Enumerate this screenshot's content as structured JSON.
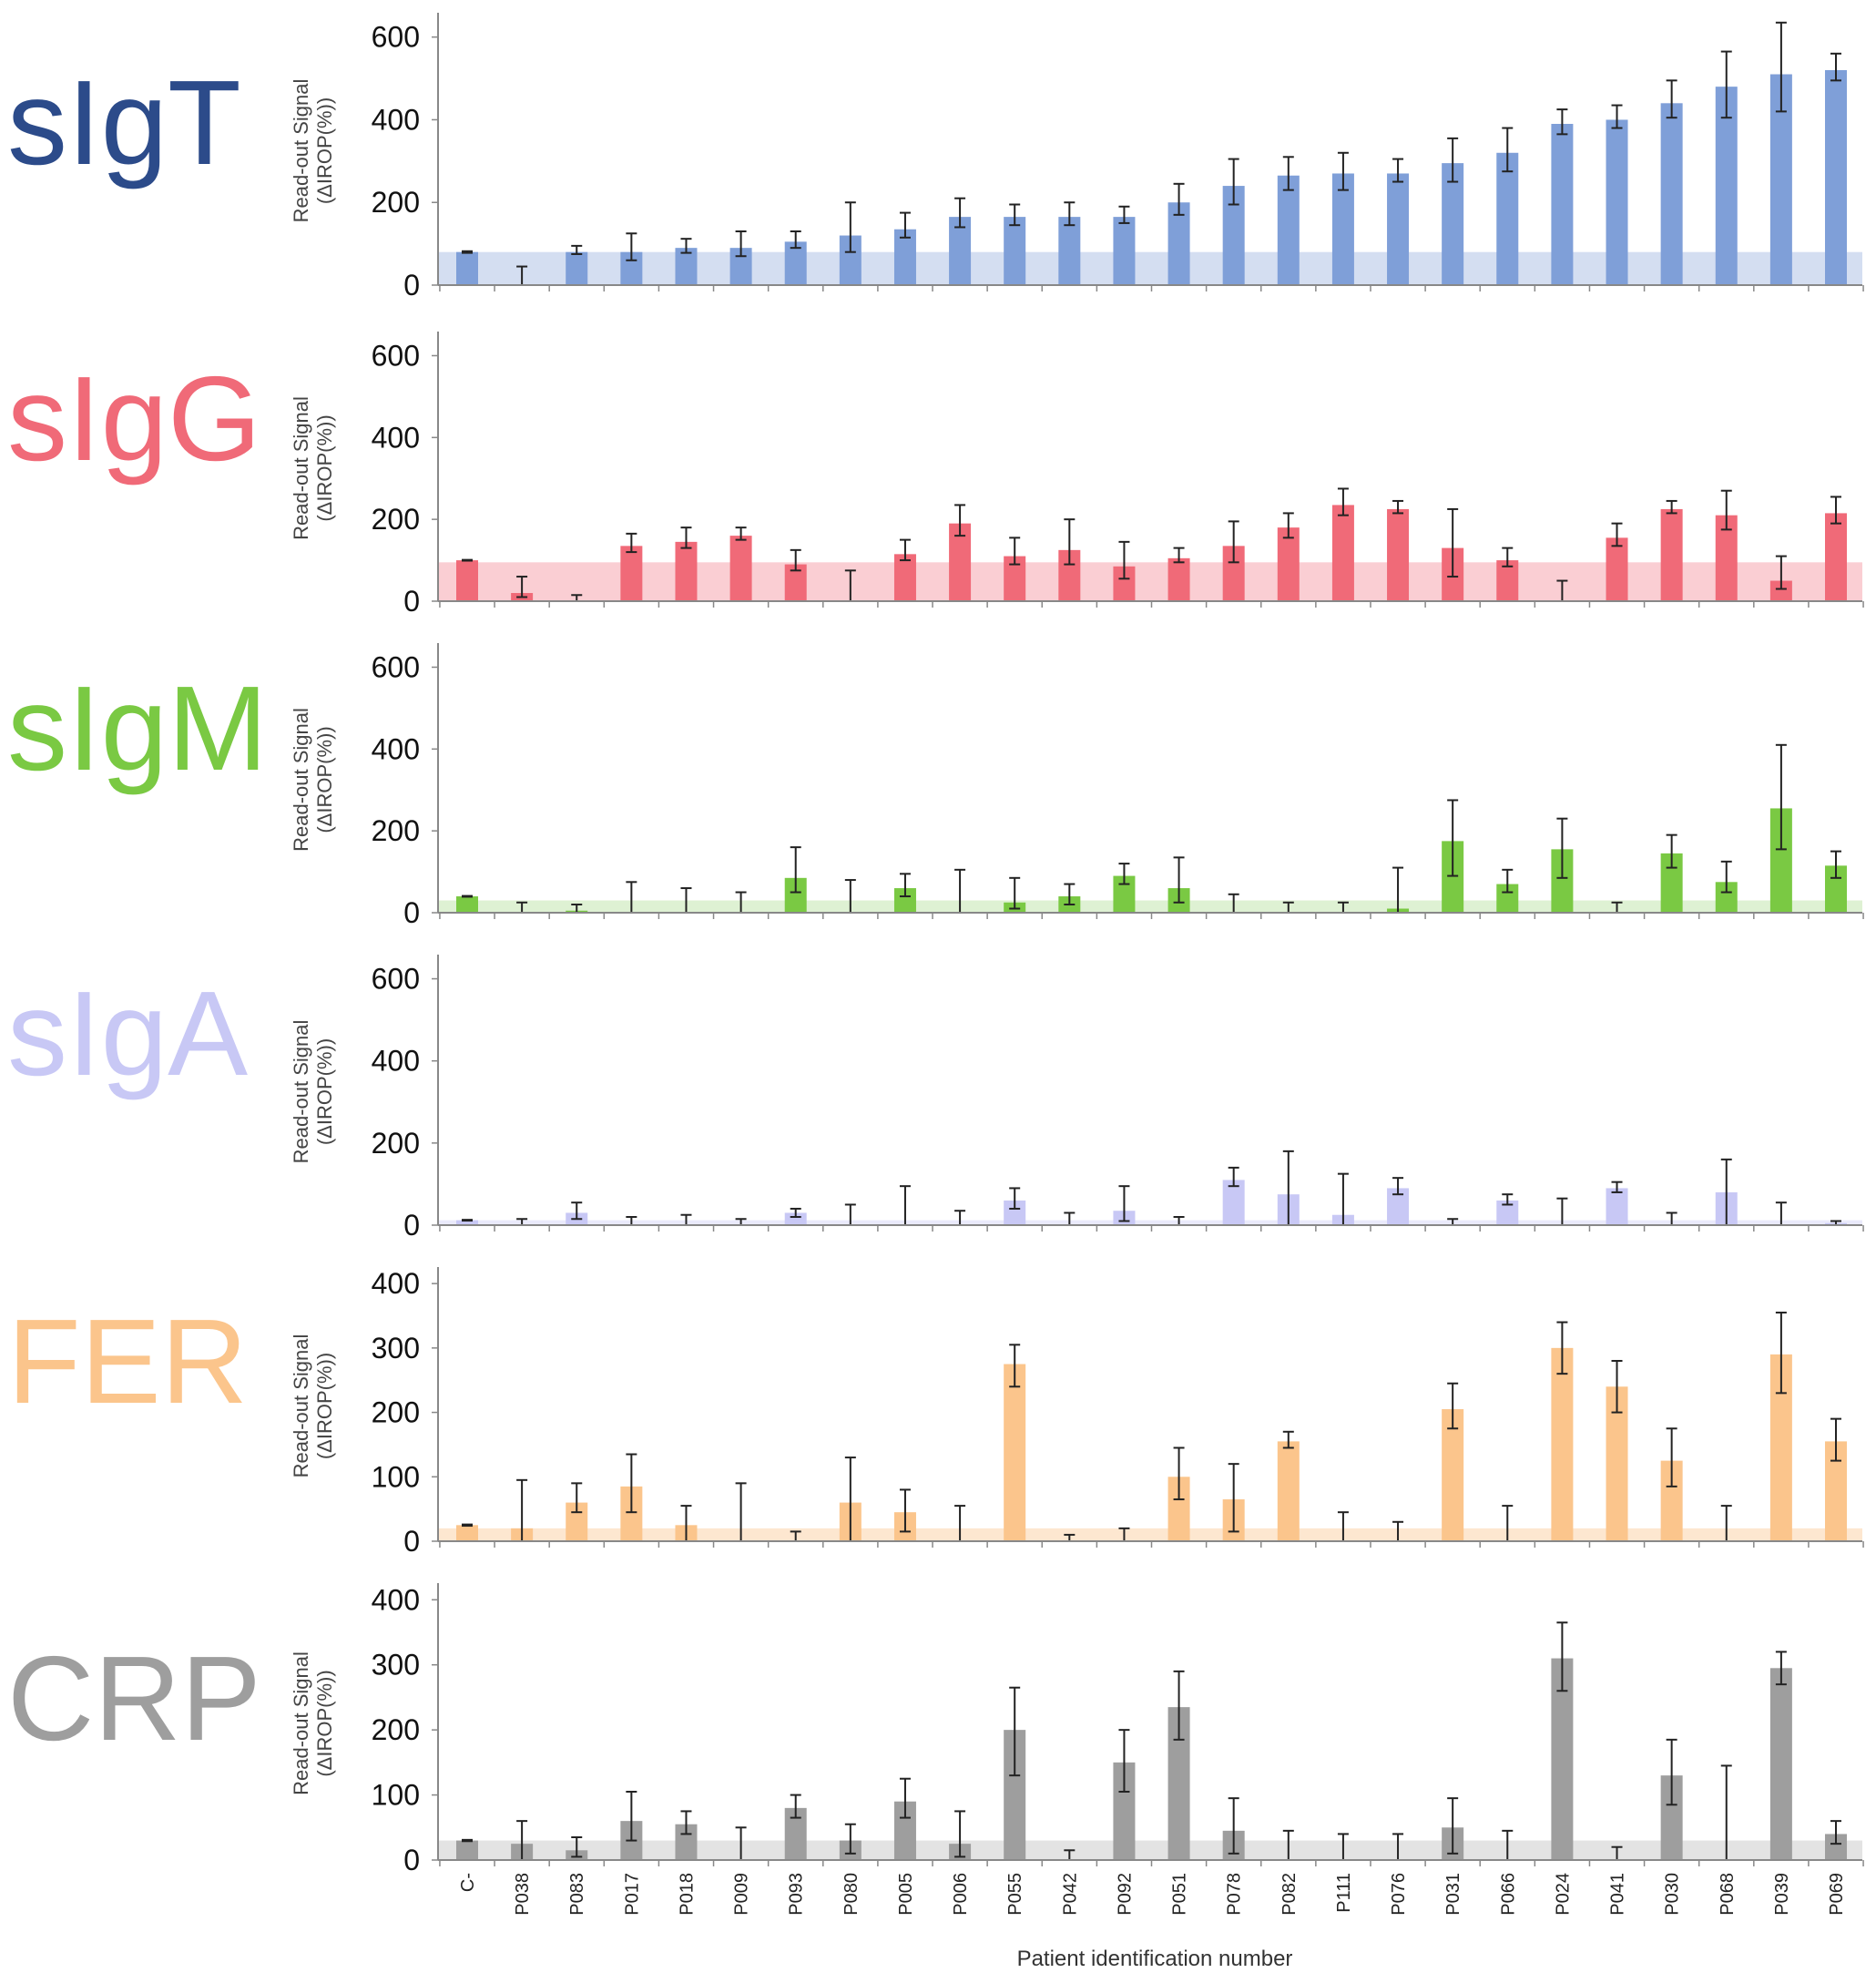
{
  "xlabel": "Patient identification number",
  "categories": [
    "C-",
    "P038",
    "P083",
    "P017",
    "P018",
    "P009",
    "P093",
    "P080",
    "P005",
    "P006",
    "P055",
    "P042",
    "P092",
    "P051",
    "P078",
    "P082",
    "P111",
    "P076",
    "P031",
    "P066",
    "P024",
    "P041",
    "P030",
    "P068",
    "P039",
    "P069"
  ],
  "chart_data": [
    {
      "type": "bar",
      "title": "sIgT",
      "ylabel": "Read-out Signal\n(ΔIROP(%))",
      "ylim": [
        0,
        650
      ],
      "yticks": [
        0,
        200,
        400,
        600
      ],
      "color": "#7f9fd8",
      "label_color": "#2c4b8a",
      "threshold": 80,
      "threshold_color": "#cdd8ef",
      "values": [
        80,
        0,
        80,
        80,
        90,
        90,
        105,
        120,
        135,
        165,
        165,
        165,
        165,
        200,
        240,
        265,
        270,
        270,
        295,
        320,
        390,
        400,
        440,
        480,
        510,
        520
      ],
      "errors_up": [
        2,
        45,
        15,
        45,
        22,
        40,
        25,
        80,
        40,
        45,
        30,
        35,
        25,
        45,
        65,
        45,
        50,
        35,
        60,
        60,
        35,
        35,
        55,
        85,
        125,
        40
      ],
      "errors_down": [
        2,
        0,
        5,
        20,
        12,
        20,
        15,
        40,
        20,
        25,
        20,
        20,
        15,
        30,
        45,
        35,
        40,
        20,
        45,
        45,
        25,
        20,
        35,
        75,
        90,
        25
      ]
    },
    {
      "type": "bar",
      "title": "sIgG",
      "ylabel": "Read-out Signal\n(ΔIROP(%))",
      "ylim": [
        0,
        650
      ],
      "yticks": [
        0,
        200,
        400,
        600
      ],
      "color": "#f06a78",
      "label_color": "#f06a78",
      "threshold": 95,
      "threshold_color": "#f9c6cb",
      "values": [
        100,
        20,
        0,
        135,
        145,
        160,
        90,
        0,
        115,
        190,
        110,
        125,
        85,
        105,
        135,
        180,
        235,
        225,
        130,
        100,
        0,
        155,
        225,
        210,
        50,
        215
      ],
      "errors_up": [
        1,
        40,
        15,
        30,
        35,
        20,
        35,
        75,
        35,
        45,
        45,
        75,
        60,
        25,
        60,
        35,
        40,
        20,
        95,
        30,
        50,
        35,
        20,
        60,
        60,
        40
      ],
      "errors_down": [
        1,
        10,
        0,
        15,
        15,
        10,
        15,
        0,
        15,
        30,
        20,
        35,
        30,
        10,
        40,
        25,
        25,
        10,
        70,
        15,
        0,
        20,
        10,
        35,
        20,
        25
      ]
    },
    {
      "type": "bar",
      "title": "sIgM",
      "ylabel": "Read-out Signal\n(ΔIROP(%))",
      "ylim": [
        0,
        650
      ],
      "yticks": [
        0,
        200,
        400,
        600
      ],
      "color": "#7ac943",
      "label_color": "#7ac943",
      "threshold": 30,
      "threshold_color": "#d8eecb",
      "values": [
        40,
        0,
        5,
        0,
        0,
        0,
        85,
        0,
        60,
        0,
        25,
        40,
        90,
        60,
        0,
        0,
        0,
        10,
        175,
        70,
        155,
        0,
        145,
        75,
        255,
        115
      ],
      "errors_up": [
        1,
        25,
        15,
        75,
        60,
        50,
        75,
        80,
        35,
        105,
        60,
        30,
        30,
        75,
        45,
        25,
        25,
        100,
        100,
        35,
        75,
        25,
        45,
        50,
        155,
        35
      ],
      "errors_down": [
        1,
        0,
        5,
        0,
        0,
        0,
        35,
        0,
        20,
        0,
        15,
        20,
        20,
        35,
        0,
        0,
        0,
        10,
        85,
        20,
        70,
        0,
        35,
        25,
        100,
        30
      ]
    },
    {
      "type": "bar",
      "title": "sIgA",
      "ylabel": "Read-out Signal\n(ΔIROP(%))",
      "ylim": [
        0,
        650
      ],
      "yticks": [
        0,
        200,
        400,
        600
      ],
      "color": "#c8c8f5",
      "label_color": "#c8c8f5",
      "threshold": 12,
      "threshold_color": "#e6e6fa",
      "values": [
        12,
        0,
        30,
        0,
        0,
        0,
        30,
        0,
        0,
        0,
        60,
        0,
        35,
        0,
        110,
        75,
        25,
        90,
        0,
        60,
        0,
        90,
        0,
        80,
        0,
        5
      ],
      "errors_up": [
        1,
        15,
        25,
        20,
        25,
        15,
        10,
        50,
        95,
        35,
        30,
        30,
        60,
        20,
        30,
        105,
        100,
        25,
        15,
        15,
        65,
        15,
        30,
        80,
        55,
        5
      ],
      "errors_down": [
        1,
        0,
        15,
        0,
        0,
        0,
        10,
        0,
        0,
        0,
        20,
        0,
        25,
        0,
        15,
        75,
        25,
        15,
        0,
        10,
        0,
        10,
        0,
        80,
        0,
        5
      ]
    },
    {
      "type": "bar",
      "title": "FER",
      "ylabel": "Read-out Signal\n(ΔIROP(%))",
      "ylim": [
        0,
        420
      ],
      "yticks": [
        0,
        100,
        200,
        300,
        400
      ],
      "ytick_positions": [
        0,
        100,
        200,
        300,
        400
      ],
      "color": "#fbc58c",
      "label_color": "#fbc58c",
      "threshold": 20,
      "threshold_color": "#fde3c8",
      "values": [
        25,
        20,
        60,
        85,
        25,
        0,
        0,
        60,
        45,
        0,
        275,
        0,
        0,
        100,
        65,
        155,
        0,
        0,
        205,
        0,
        300,
        240,
        125,
        0,
        290,
        155
      ],
      "errors_up": [
        1,
        75,
        30,
        50,
        30,
        90,
        15,
        70,
        35,
        55,
        30,
        10,
        20,
        45,
        55,
        15,
        45,
        30,
        40,
        55,
        40,
        40,
        50,
        55,
        65,
        35
      ],
      "errors_down": [
        1,
        20,
        15,
        40,
        25,
        0,
        0,
        60,
        30,
        0,
        35,
        0,
        0,
        35,
        50,
        10,
        0,
        0,
        30,
        0,
        40,
        40,
        40,
        0,
        60,
        30
      ]
    },
    {
      "type": "bar",
      "title": "CRP",
      "ylabel": "Read-out Signal\n(ΔIROP(%))",
      "ylim": [
        0,
        420
      ],
      "yticks": [
        0,
        100,
        200,
        300,
        400
      ],
      "color": "#9e9e9e",
      "label_color": "#9e9e9e",
      "threshold": 30,
      "threshold_color": "#dedede",
      "values": [
        30,
        25,
        15,
        60,
        55,
        0,
        80,
        30,
        90,
        25,
        200,
        0,
        150,
        235,
        45,
        0,
        0,
        0,
        50,
        0,
        310,
        0,
        130,
        0,
        295,
        40
      ],
      "errors_up": [
        1,
        35,
        20,
        45,
        20,
        50,
        20,
        25,
        35,
        50,
        65,
        15,
        50,
        55,
        50,
        45,
        40,
        40,
        45,
        45,
        55,
        20,
        55,
        145,
        25,
        20
      ],
      "errors_down": [
        1,
        25,
        10,
        30,
        15,
        0,
        15,
        20,
        25,
        20,
        70,
        0,
        45,
        50,
        35,
        0,
        0,
        0,
        40,
        0,
        50,
        0,
        45,
        0,
        25,
        15
      ]
    }
  ]
}
